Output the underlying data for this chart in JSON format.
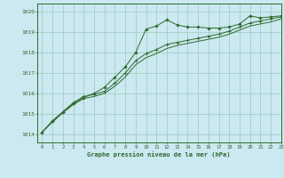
{
  "title": "Graphe pression niveau de la mer (hPa)",
  "bg_color": "#cce8f0",
  "line_color": "#2d6a2d",
  "grid_color": "#99ccbb",
  "xlim": [
    -0.5,
    23
  ],
  "ylim": [
    1013.6,
    1020.4
  ],
  "yticks": [
    1014,
    1015,
    1016,
    1017,
    1018,
    1019,
    1020
  ],
  "xticks": [
    0,
    1,
    2,
    3,
    4,
    5,
    6,
    7,
    8,
    9,
    10,
    11,
    12,
    13,
    14,
    15,
    16,
    17,
    18,
    19,
    20,
    21,
    22,
    23
  ],
  "series1_x": [
    0,
    1,
    2,
    3,
    4,
    5,
    6,
    7,
    8,
    9,
    10,
    11,
    12,
    13,
    14,
    15,
    16,
    17,
    18,
    19,
    20,
    21,
    22,
    23
  ],
  "series1_y": [
    1014.1,
    1014.65,
    1015.1,
    1015.5,
    1015.8,
    1016.0,
    1016.3,
    1016.8,
    1017.3,
    1018.0,
    1019.15,
    1019.3,
    1019.6,
    1019.35,
    1019.25,
    1019.25,
    1019.2,
    1019.2,
    1019.25,
    1019.4,
    1019.8,
    1019.7,
    1019.75,
    1019.8
  ],
  "series2_x": [
    0,
    1,
    2,
    3,
    4,
    5,
    6,
    7,
    8,
    9,
    10,
    11,
    12,
    13,
    14,
    15,
    16,
    17,
    18,
    19,
    20,
    21,
    22,
    23
  ],
  "series2_y": [
    1014.1,
    1014.65,
    1015.1,
    1015.55,
    1015.85,
    1015.95,
    1016.1,
    1016.5,
    1017.0,
    1017.6,
    1017.95,
    1018.15,
    1018.4,
    1018.5,
    1018.6,
    1018.7,
    1018.8,
    1018.9,
    1019.05,
    1019.25,
    1019.45,
    1019.55,
    1019.65,
    1019.75
  ],
  "series3_x": [
    0,
    1,
    2,
    3,
    4,
    5,
    6,
    7,
    8,
    9,
    10,
    11,
    12,
    13,
    14,
    15,
    16,
    17,
    18,
    19,
    20,
    21,
    22,
    23
  ],
  "series3_y": [
    1014.1,
    1014.6,
    1015.05,
    1015.45,
    1015.75,
    1015.85,
    1016.0,
    1016.35,
    1016.8,
    1017.4,
    1017.75,
    1017.95,
    1018.2,
    1018.35,
    1018.45,
    1018.55,
    1018.65,
    1018.75,
    1018.9,
    1019.1,
    1019.3,
    1019.4,
    1019.5,
    1019.65
  ]
}
